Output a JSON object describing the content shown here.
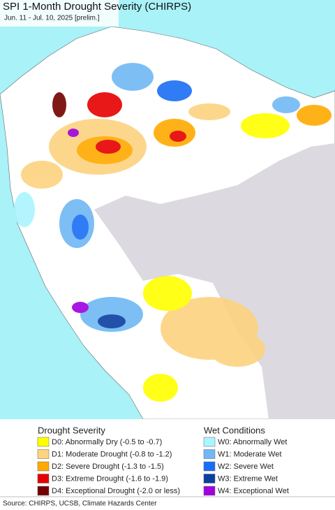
{
  "header": {
    "title": "SPI 1-Month Drought Severity (CHIRPS)",
    "subtitle": "Jun. 11 - Jul. 10, 2025 [prelim.]"
  },
  "legend": {
    "drought": {
      "title": "Drought Severity",
      "items": [
        {
          "label": "D0: Abnormally Dry (-0.5 to -0.7)",
          "color": "#ffff00"
        },
        {
          "label": "D1: Moderate Drought (-0.8 to -1.2)",
          "color": "#fcd37f"
        },
        {
          "label": "D2: Severe Drought (-1.3 to -1.5)",
          "color": "#ffaa00"
        },
        {
          "label": "D3: Extreme Drought (-1.6 to -1.9)",
          "color": "#e60000"
        },
        {
          "label": "D4: Exceptional Drought (-2.0 or less)",
          "color": "#730000"
        }
      ]
    },
    "wet": {
      "title": "Wet Conditions",
      "items": [
        {
          "label": "W0: Abnormally Wet",
          "color": "#aaf5ff"
        },
        {
          "label": "W1: Moderate Wet",
          "color": "#70b8f5"
        },
        {
          "label": "W2: Severe Wet",
          "color": "#1a6ef5"
        },
        {
          "label": "W3: Extreme Wet",
          "color": "#0a3fa0"
        },
        {
          "label": "W4: Exceptional Wet",
          "color": "#a000e0"
        }
      ]
    }
  },
  "footer": {
    "source": "Source: CHIRPS, UCSB, Climate Hazards Center"
  }
}
